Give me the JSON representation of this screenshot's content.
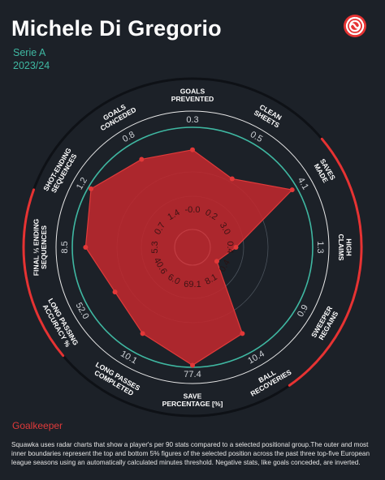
{
  "header": {
    "player_name": "Michele Di Gregorio",
    "league": "Serie A",
    "season": "2023/24"
  },
  "logo": {
    "icon": "squawka-logo-icon",
    "color": "#e63333"
  },
  "position_label": "Goalkeeper",
  "footnote": "Squawka uses radar charts that show a player's per 90 stats compared to a selected positional group.The outer and most inner boundaries represent the top and bottom 5% figures of the selected position across the past three top-five European league seasons using an automatically calculated minutes threshold. Negative stats, like goals conceded, are inverted.",
  "colors": {
    "background": "#1c2128",
    "accent": "#e63333",
    "ring": "#3fb8a2",
    "area": "#c0282d"
  },
  "chart_data": {
    "type": "radar",
    "grid": true,
    "axes": [
      {
        "label": [
          "GOALS",
          "PREVENTED"
        ],
        "outer": "0.3",
        "inner": "-0.0",
        "value": 0.78
      },
      {
        "label": [
          "CLEAN",
          "SHEETS"
        ],
        "outer": "0.5",
        "inner": "0.2",
        "value": 0.6
      },
      {
        "label": [
          "SAVES",
          "MADE"
        ],
        "outer": "4.1",
        "inner": "3.0",
        "value": 0.95
      },
      {
        "label": [
          "HIGH",
          "CLAIMS"
        ],
        "outer": "1.3",
        "inner": "0.4",
        "value": 0.25
      },
      {
        "label": [
          "SWEEPER",
          "REGAINS"
        ],
        "outer": "0.9",
        "inner": "0.4",
        "value": 0.1
      },
      {
        "label": [
          "BALL",
          "RECOVERIES"
        ],
        "outer": "10.4",
        "inner": "8.1",
        "value": 0.8
      },
      {
        "label": [
          "SAVE",
          "PERCENTAGE [%]"
        ],
        "outer": "77.4",
        "inner": "69.1",
        "value": 0.98
      },
      {
        "label": [
          "LONG PASSES",
          "COMPLETED"
        ],
        "outer": "10.1",
        "inner": "6.0",
        "value": 0.8
      },
      {
        "label": [
          "LONG PASSING",
          "ACCURACY %"
        ],
        "outer": "52.0",
        "inner": "40.6",
        "value": 0.7
      },
      {
        "label": [
          "FINAL ⅓ ENDING",
          "SEQUENCES"
        ],
        "outer": "8.5",
        "inner": "5.3",
        "value": 0.87
      },
      {
        "label": [
          "SHOT-ENDING",
          "SEQUENCES"
        ],
        "outer": "1.2",
        "inner": "0.7",
        "value": 0.97
      },
      {
        "label": [
          "GOALS",
          "CONCEDED"
        ],
        "outer": "0.8",
        "inner": "1.4",
        "value": 0.82
      }
    ]
  }
}
